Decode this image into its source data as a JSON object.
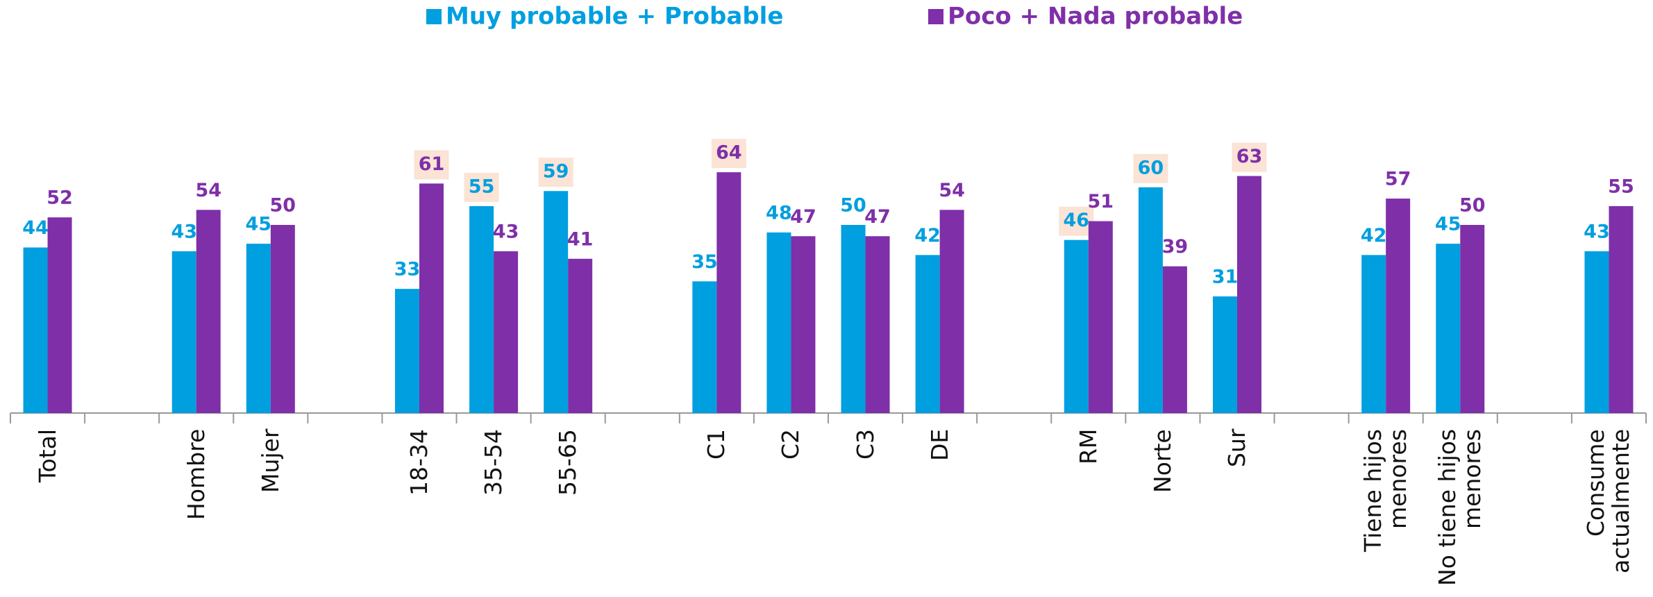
{
  "chart_data": {
    "type": "bar",
    "categories": [
      "Total",
      null,
      "Hombre",
      "Mujer",
      null,
      "18-34",
      "35-54",
      "55-65",
      null,
      "C1",
      "C2",
      "C3",
      "DE",
      null,
      "RM",
      "Norte",
      "Sur",
      null,
      "Tiene hijos menores",
      "No tiene hijos menores",
      null,
      "Consume actualmente"
    ],
    "series": [
      {
        "name": "Muy probable + Probable",
        "color": "#009fdf",
        "values": [
          44,
          null,
          43,
          45,
          null,
          33,
          55,
          59,
          null,
          35,
          48,
          50,
          42,
          null,
          46,
          60,
          31,
          null,
          42,
          45,
          null,
          43
        ],
        "highlight": [
          6,
          7,
          14,
          15
        ]
      },
      {
        "name": "Poco + Nada probable",
        "color": "#7f2fa8",
        "values": [
          52,
          null,
          54,
          50,
          null,
          61,
          43,
          41,
          null,
          64,
          47,
          47,
          54,
          null,
          51,
          39,
          63,
          null,
          57,
          50,
          null,
          55
        ],
        "highlight": [
          5,
          9,
          16
        ]
      }
    ],
    "highlight_color": "#fbe3d5",
    "ylim": [
      0,
      100
    ],
    "legend": "top"
  }
}
